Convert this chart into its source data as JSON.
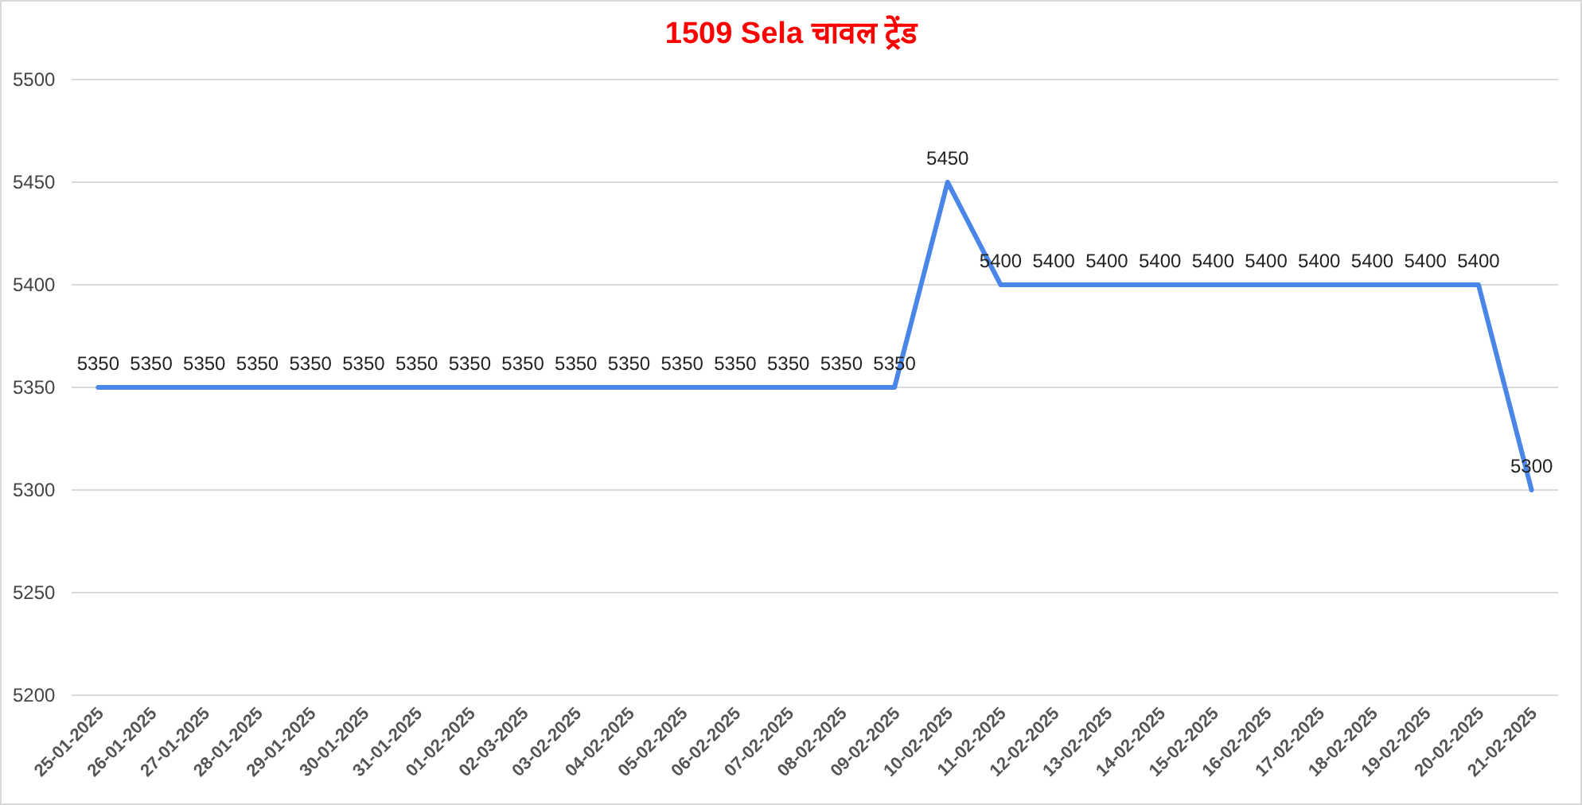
{
  "chart_data": {
    "type": "line",
    "title": "1509 Sela चावल ट्रेंड",
    "categories": [
      "25-01-2025",
      "26-01-2025",
      "27-01-2025",
      "28-01-2025",
      "29-01-2025",
      "30-01-2025",
      "31-01-2025",
      "01-02-2025",
      "02-03-2025",
      "03-02-2025",
      "04-02-2025",
      "05-02-2025",
      "06-02-2025",
      "07-02-2025",
      "08-02-2025",
      "09-02-2025",
      "10-02-2025",
      "11-02-2025",
      "12-02-2025",
      "13-02-2025",
      "14-02-2025",
      "15-02-2025",
      "16-02-2025",
      "17-02-2025",
      "18-02-2025",
      "19-02-2025",
      "20-02-2025",
      "21-02-2025"
    ],
    "values": [
      5350,
      5350,
      5350,
      5350,
      5350,
      5350,
      5350,
      5350,
      5350,
      5350,
      5350,
      5350,
      5350,
      5350,
      5350,
      5350,
      5450,
      5400,
      5400,
      5400,
      5400,
      5400,
      5400,
      5400,
      5400,
      5400,
      5400,
      5300
    ],
    "color": "#4a86e8",
    "ylim": [
      5200,
      5500
    ],
    "yticks": [
      5200,
      5250,
      5300,
      5350,
      5400,
      5450,
      5500
    ],
    "grid": "y",
    "data_labels": true
  }
}
